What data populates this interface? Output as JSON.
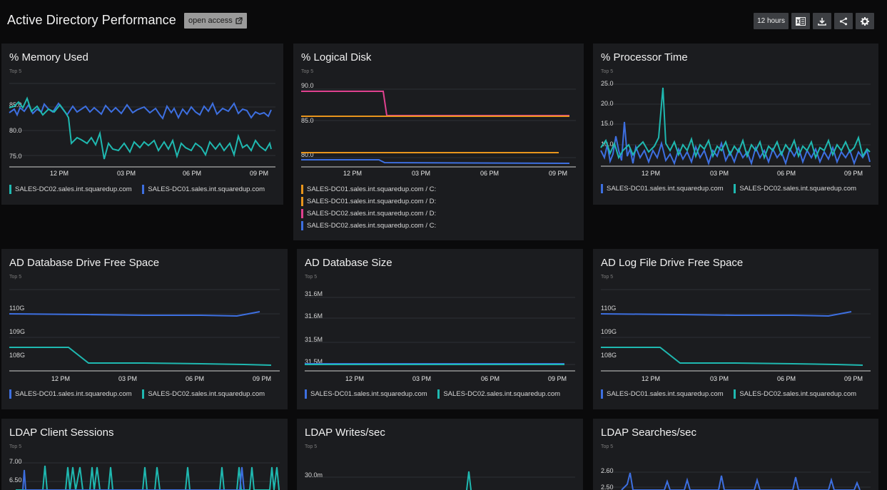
{
  "header": {
    "title": "Active Directory Performance",
    "open_access_label": "open access",
    "timeframe_label": "12 hours"
  },
  "colors": {
    "teal": "#1fb8b0",
    "blue": "#3d6fe0",
    "orange": "#e8951c",
    "pink": "#e0418f",
    "background": "#0a0a0b",
    "panel": "#1b1c1f"
  },
  "x_ticks": [
    "12 PM",
    "03 PM",
    "06 PM",
    "09 PM"
  ],
  "tiles": [
    {
      "title": "% Memory Used",
      "subtitle": "Top 5",
      "chart_data": {
        "type": "line",
        "y_ticks": [
          "85.0",
          "80.0",
          "75.0"
        ],
        "legend": [
          {
            "name": "SALES-DC02.sales.int.squaredup.com",
            "color": "teal"
          },
          {
            "name": "SALES-DC01.sales.int.squaredup.com",
            "color": "blue"
          }
        ]
      }
    },
    {
      "title": "% Logical Disk",
      "subtitle": "Top 5",
      "chart_data": {
        "type": "line",
        "y_ticks": [
          "90.0",
          "85.0",
          "80.0"
        ],
        "legend": [
          {
            "name": "SALES-DC01.sales.int.squaredup.com / C:",
            "color": "orange"
          },
          {
            "name": "SALES-DC01.sales.int.squaredup.com / D:",
            "color": "orange"
          },
          {
            "name": "SALES-DC02.sales.int.squaredup.com / D:",
            "color": "pink"
          },
          {
            "name": "SALES-DC02.sales.int.squaredup.com / C:",
            "color": "blue"
          }
        ]
      }
    },
    {
      "title": "% Processor Time",
      "subtitle": "Top 5",
      "chart_data": {
        "type": "line",
        "y_ticks": [
          "25.0",
          "20.0",
          "15.0",
          "10.0"
        ],
        "legend": [
          {
            "name": "SALES-DC01.sales.int.squaredup.com",
            "color": "blue"
          },
          {
            "name": "SALES-DC02.sales.int.squaredup.com",
            "color": "teal"
          }
        ]
      }
    },
    {
      "title": "AD Database Drive Free Space",
      "subtitle": "Top 5",
      "chart_data": {
        "type": "line",
        "y_ticks": [
          "110G",
          "109G",
          "108G"
        ],
        "legend": [
          {
            "name": "SALES-DC01.sales.int.squaredup.com",
            "color": "blue"
          },
          {
            "name": "SALES-DC02.sales.int.squaredup.com",
            "color": "teal"
          }
        ]
      }
    },
    {
      "title": "AD Database Size",
      "subtitle": "Top 5",
      "chart_data": {
        "type": "line",
        "y_ticks": [
          "31.6M",
          "31.6M",
          "31.5M",
          "31.5M"
        ],
        "legend": [
          {
            "name": "SALES-DC01.sales.int.squaredup.com",
            "color": "blue"
          },
          {
            "name": "SALES-DC02.sales.int.squaredup.com",
            "color": "teal"
          }
        ]
      }
    },
    {
      "title": "AD Log File Drive Free Space",
      "subtitle": "Top 5",
      "chart_data": {
        "type": "line",
        "y_ticks": [
          "110G",
          "109G",
          "108G"
        ],
        "legend": [
          {
            "name": "SALES-DC01.sales.int.squaredup.com",
            "color": "blue"
          },
          {
            "name": "SALES-DC02.sales.int.squaredup.com",
            "color": "teal"
          }
        ]
      }
    },
    {
      "title": "LDAP Client Sessions",
      "subtitle": "Top 5",
      "chart_data": {
        "type": "line",
        "y_ticks": [
          "7.00",
          "6.50"
        ],
        "legend": []
      }
    },
    {
      "title": "LDAP Writes/sec",
      "subtitle": "Top 5",
      "chart_data": {
        "type": "line",
        "y_ticks": [
          "30.0m"
        ],
        "legend": []
      }
    },
    {
      "title": "LDAP Searches/sec",
      "subtitle": "Top 5",
      "chart_data": {
        "type": "line",
        "y_ticks": [
          "2.60",
          "2.50"
        ],
        "legend": []
      }
    }
  ]
}
